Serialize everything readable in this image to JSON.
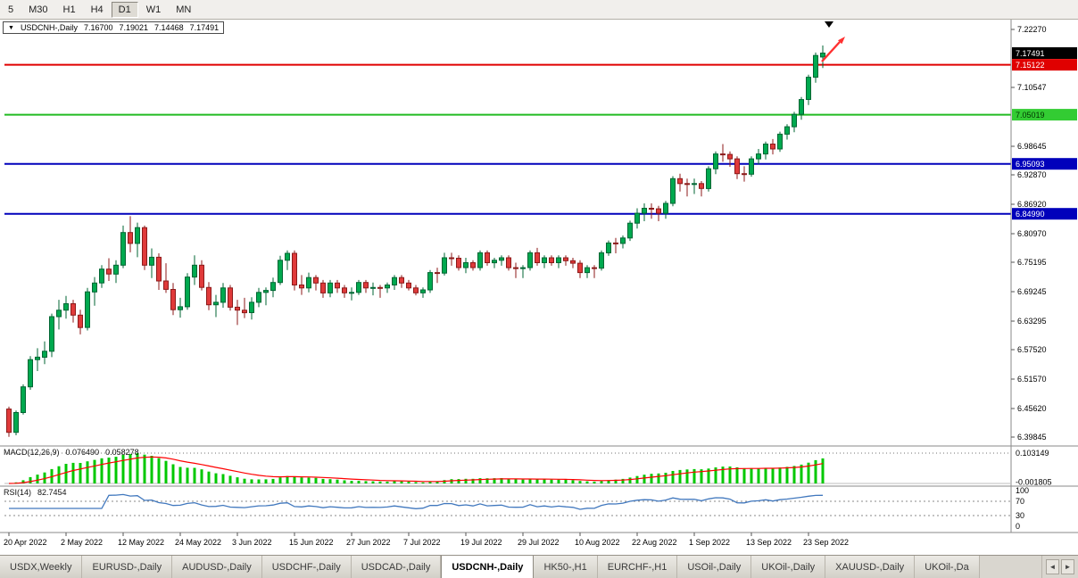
{
  "toolbar": {
    "timeframes": [
      {
        "label": "5",
        "active": false
      },
      {
        "label": "M30",
        "active": false
      },
      {
        "label": "H1",
        "active": false
      },
      {
        "label": "H4",
        "active": false
      },
      {
        "label": "D1",
        "active": true
      },
      {
        "label": "W1",
        "active": false
      },
      {
        "label": "MN",
        "active": false
      }
    ]
  },
  "quote_header": {
    "symbol": "USDCNH-,Daily",
    "open": "7.16700",
    "high": "7.19021",
    "low": "7.14468",
    "close": "7.17491"
  },
  "chart_data": {
    "type": "candlestick",
    "symbol": "USDCNH-",
    "period": "Daily",
    "price_min": 6.39845,
    "price_max": 7.2227,
    "y_ticks": [
      7.2227,
      7.10547,
      6.98645,
      6.9287,
      6.8692,
      6.8097,
      6.75195,
      6.69245,
      6.63295,
      6.5752,
      6.5157,
      6.4562,
      6.39845
    ],
    "price_markers": [
      {
        "value": 7.17491,
        "label": "7.17491",
        "color": "#000000",
        "text": "#ffffff",
        "line": false,
        "line_color": "#000000"
      },
      {
        "value": 7.15122,
        "label": "7.15122",
        "color": "#e00000",
        "text": "#ffffff",
        "line": true,
        "line_color": "#e00000"
      },
      {
        "value": 7.05019,
        "label": "7.05019",
        "color": "#33cc33",
        "text": "#003300",
        "line": true,
        "line_color": "#22bb22"
      },
      {
        "value": 6.95093,
        "label": "6.95093",
        "color": "#0000bb",
        "text": "#ffffff",
        "line": true,
        "line_color": "#0000bb"
      },
      {
        "value": 6.8499,
        "label": "6.84990",
        "color": "#0000bb",
        "text": "#ffffff",
        "line": true,
        "line_color": "#0000bb"
      }
    ],
    "x_labels": [
      {
        "idx": 0,
        "label": "20 Apr 2022"
      },
      {
        "idx": 8,
        "label": "2 May 2022"
      },
      {
        "idx": 16,
        "label": "12 May 2022"
      },
      {
        "idx": 24,
        "label": "24 May 2022"
      },
      {
        "idx": 32,
        "label": "3 Jun 2022"
      },
      {
        "idx": 40,
        "label": "15 Jun 2022"
      },
      {
        "idx": 48,
        "label": "27 Jun 2022"
      },
      {
        "idx": 56,
        "label": "7 Jul 2022"
      },
      {
        "idx": 64,
        "label": "19 Jul 2022"
      },
      {
        "idx": 72,
        "label": "29 Jul 2022"
      },
      {
        "idx": 80,
        "label": "10 Aug 2022"
      },
      {
        "idx": 88,
        "label": "22 Aug 2022"
      },
      {
        "idx": 96,
        "label": "1 Sep 2022"
      },
      {
        "idx": 104,
        "label": "13 Sep 2022"
      },
      {
        "idx": 112,
        "label": "23 Sep 2022"
      }
    ],
    "colors": {
      "up": "#00A94F",
      "up_border": "#006633",
      "down": "#E03A3A",
      "down_border": "#8C1A1A"
    },
    "candles": [
      [
        6.455,
        6.46,
        6.399,
        6.408
      ],
      [
        6.408,
        6.452,
        6.402,
        6.448
      ],
      [
        6.448,
        6.505,
        6.444,
        6.5
      ],
      [
        6.5,
        6.562,
        6.494,
        6.555
      ],
      [
        6.555,
        6.578,
        6.532,
        6.56
      ],
      [
        6.56,
        6.592,
        6.546,
        6.572
      ],
      [
        6.572,
        6.648,
        6.56,
        6.642
      ],
      [
        6.642,
        6.676,
        6.616,
        6.655
      ],
      [
        6.655,
        6.684,
        6.638,
        6.668
      ],
      [
        6.668,
        6.676,
        6.63,
        6.645
      ],
      [
        6.645,
        6.656,
        6.606,
        6.62
      ],
      [
        6.62,
        6.7,
        6.614,
        6.692
      ],
      [
        6.692,
        6.722,
        6.664,
        6.71
      ],
      [
        6.71,
        6.746,
        6.7,
        6.738
      ],
      [
        6.738,
        6.76,
        6.714,
        6.728
      ],
      [
        6.728,
        6.756,
        6.71,
        6.746
      ],
      [
        6.746,
        6.826,
        6.74,
        6.812
      ],
      [
        6.812,
        6.845,
        6.772,
        6.79
      ],
      [
        6.79,
        6.832,
        6.762,
        6.822
      ],
      [
        6.822,
        6.826,
        6.736,
        6.746
      ],
      [
        6.746,
        6.78,
        6.72,
        6.762
      ],
      [
        6.762,
        6.77,
        6.696,
        6.714
      ],
      [
        6.714,
        6.75,
        6.69,
        6.697
      ],
      [
        6.697,
        6.71,
        6.645,
        6.656
      ],
      [
        6.656,
        6.68,
        6.64,
        6.662
      ],
      [
        6.662,
        6.73,
        6.656,
        6.722
      ],
      [
        6.722,
        6.766,
        6.706,
        6.746
      ],
      [
        6.746,
        6.756,
        6.695,
        6.701
      ],
      [
        6.701,
        6.712,
        6.655,
        6.666
      ],
      [
        6.666,
        6.686,
        6.641,
        6.671
      ],
      [
        6.671,
        6.71,
        6.66,
        6.7
      ],
      [
        6.7,
        6.706,
        6.654,
        6.661
      ],
      [
        6.661,
        6.676,
        6.625,
        6.655
      ],
      [
        6.655,
        6.68,
        6.639,
        6.65
      ],
      [
        6.65,
        6.681,
        6.636,
        6.671
      ],
      [
        6.671,
        6.7,
        6.661,
        6.691
      ],
      [
        6.691,
        6.701,
        6.665,
        6.695
      ],
      [
        6.695,
        6.721,
        6.681,
        6.711
      ],
      [
        6.711,
        6.765,
        6.706,
        6.756
      ],
      [
        6.756,
        6.776,
        6.736,
        6.77
      ],
      [
        6.77,
        6.776,
        6.695,
        6.706
      ],
      [
        6.706,
        6.726,
        6.686,
        6.7
      ],
      [
        6.7,
        6.731,
        6.691,
        6.721
      ],
      [
        6.721,
        6.726,
        6.695,
        6.71
      ],
      [
        6.71,
        6.716,
        6.68,
        6.69
      ],
      [
        6.69,
        6.716,
        6.681,
        6.71
      ],
      [
        6.71,
        6.716,
        6.69,
        6.7
      ],
      [
        6.7,
        6.706,
        6.68,
        6.69
      ],
      [
        6.69,
        6.701,
        6.675,
        6.691
      ],
      [
        6.691,
        6.716,
        6.686,
        6.711
      ],
      [
        6.711,
        6.716,
        6.69,
        6.7
      ],
      [
        6.7,
        6.711,
        6.685,
        6.701
      ],
      [
        6.701,
        6.706,
        6.68,
        6.7
      ],
      [
        6.7,
        6.711,
        6.69,
        6.706
      ],
      [
        6.706,
        6.726,
        6.696,
        6.721
      ],
      [
        6.721,
        6.726,
        6.7,
        6.71
      ],
      [
        6.71,
        6.716,
        6.695,
        6.7
      ],
      [
        6.7,
        6.706,
        6.685,
        6.69
      ],
      [
        6.69,
        6.701,
        6.68,
        6.696
      ],
      [
        6.696,
        6.736,
        6.69,
        6.731
      ],
      [
        6.731,
        6.741,
        6.71,
        6.73
      ],
      [
        6.73,
        6.771,
        6.725,
        6.761
      ],
      [
        6.761,
        6.771,
        6.745,
        6.76
      ],
      [
        6.76,
        6.766,
        6.735,
        6.741
      ],
      [
        6.741,
        6.761,
        6.73,
        6.751
      ],
      [
        6.751,
        6.756,
        6.735,
        6.741
      ],
      [
        6.741,
        6.776,
        6.735,
        6.771
      ],
      [
        6.771,
        6.776,
        6.745,
        6.751
      ],
      [
        6.751,
        6.761,
        6.74,
        6.756
      ],
      [
        6.756,
        6.766,
        6.745,
        6.761
      ],
      [
        6.761,
        6.766,
        6.735,
        6.741
      ],
      [
        6.741,
        6.751,
        6.72,
        6.74
      ],
      [
        6.74,
        6.746,
        6.72,
        6.741
      ],
      [
        6.741,
        6.776,
        6.735,
        6.771
      ],
      [
        6.771,
        6.781,
        6.745,
        6.751
      ],
      [
        6.751,
        6.766,
        6.74,
        6.761
      ],
      [
        6.761,
        6.766,
        6.745,
        6.751
      ],
      [
        6.751,
        6.766,
        6.74,
        6.761
      ],
      [
        6.761,
        6.766,
        6.745,
        6.755
      ],
      [
        6.755,
        6.761,
        6.74,
        6.75
      ],
      [
        6.75,
        6.756,
        6.72,
        6.731
      ],
      [
        6.731,
        6.746,
        6.72,
        6.741
      ],
      [
        6.741,
        6.746,
        6.72,
        6.74
      ],
      [
        6.74,
        6.776,
        6.735,
        6.771
      ],
      [
        6.771,
        6.796,
        6.765,
        6.791
      ],
      [
        6.791,
        6.801,
        6.77,
        6.79
      ],
      [
        6.79,
        6.806,
        6.78,
        6.801
      ],
      [
        6.801,
        6.836,
        6.795,
        6.831
      ],
      [
        6.831,
        6.861,
        6.82,
        6.851
      ],
      [
        6.851,
        6.871,
        6.835,
        6.861
      ],
      [
        6.861,
        6.871,
        6.84,
        6.86
      ],
      [
        6.86,
        6.866,
        6.835,
        6.851
      ],
      [
        6.851,
        6.876,
        6.84,
        6.871
      ],
      [
        6.871,
        6.926,
        6.865,
        6.921
      ],
      [
        6.921,
        6.931,
        6.895,
        6.911
      ],
      [
        6.911,
        6.921,
        6.885,
        6.91
      ],
      [
        6.91,
        6.921,
        6.89,
        6.911
      ],
      [
        6.911,
        6.916,
        6.885,
        6.901
      ],
      [
        6.901,
        6.946,
        6.895,
        6.941
      ],
      [
        6.941,
        6.976,
        6.93,
        6.971
      ],
      [
        6.971,
        6.991,
        6.955,
        6.97
      ],
      [
        6.97,
        6.976,
        6.945,
        6.961
      ],
      [
        6.961,
        6.966,
        6.92,
        6.931
      ],
      [
        6.931,
        6.946,
        6.915,
        6.93
      ],
      [
        6.93,
        6.966,
        6.925,
        6.961
      ],
      [
        6.961,
        6.981,
        6.95,
        6.971
      ],
      [
        6.971,
        6.996,
        6.96,
        6.991
      ],
      [
        6.991,
        7.001,
        6.97,
        6.981
      ],
      [
        6.981,
        7.016,
        6.975,
        7.011
      ],
      [
        7.011,
        7.031,
        7.0,
        7.026
      ],
      [
        7.026,
        7.056,
        7.015,
        7.051
      ],
      [
        7.051,
        7.086,
        7.04,
        7.081
      ],
      [
        7.081,
        7.131,
        7.07,
        7.126
      ],
      [
        7.126,
        7.176,
        7.115,
        7.17
      ],
      [
        7.167,
        7.19021,
        7.14468,
        7.17491
      ]
    ]
  },
  "macd": {
    "label": "MACD(12,26,9)",
    "value": "0.076490",
    "signal": "0.058278",
    "axis_max": "0.103149",
    "axis_min": "-0.001805",
    "fast": 12,
    "slow": 26,
    "signal_period": 9,
    "color": "#00C800",
    "signal_color": "#FF0000"
  },
  "rsi": {
    "label": "RSI(14)",
    "value": "82.7454",
    "period": 14,
    "levels": [
      100,
      70,
      30,
      0
    ],
    "color": "#4178BE"
  },
  "tabs": {
    "items": [
      {
        "label": "USDX,Weekly",
        "active": false
      },
      {
        "label": "EURUSD-,Daily",
        "active": false
      },
      {
        "label": "AUDUSD-,Daily",
        "active": false
      },
      {
        "label": "USDCHF-,Daily",
        "active": false
      },
      {
        "label": "USDCAD-,Daily",
        "active": false
      },
      {
        "label": "USDCNH-,Daily",
        "active": true
      },
      {
        "label": "HK50-,H1",
        "active": false
      },
      {
        "label": "EURCHF-,H1",
        "active": false
      },
      {
        "label": "USOil-,Daily",
        "active": false
      },
      {
        "label": "UKOil-,Daily",
        "active": false
      },
      {
        "label": "XAUUSD-,Daily",
        "active": false
      },
      {
        "label": "UKOil-,Da",
        "active": false
      }
    ],
    "scroll_left": "◄",
    "scroll_right": "►"
  },
  "annotations": {
    "arrow_color": "#FF3030",
    "top_marker": "▼",
    "top_marker_color": "#000000"
  }
}
